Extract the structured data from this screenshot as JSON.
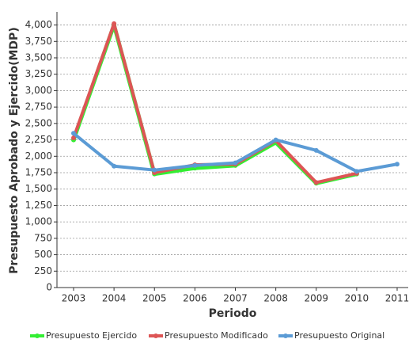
{
  "chart_data": {
    "type": "line",
    "x_label": "Periodo",
    "y_label": "Presupuesto Aprobado y Ejercido(MDP)",
    "categories": [
      "2003",
      "2004",
      "2005",
      "2006",
      "2007",
      "2008",
      "2009",
      "2010",
      "2011"
    ],
    "series": [
      {
        "name": "Presupuesto Ejercido",
        "color": "#33ee33",
        "values": [
          2250,
          4000,
          1730,
          1820,
          1860,
          2210,
          1590,
          1730,
          null
        ]
      },
      {
        "name": "Presupuesto Modificado",
        "color": "#dd5555",
        "values": [
          2280,
          4020,
          1750,
          1870,
          1880,
          2240,
          1600,
          1740,
          null
        ]
      },
      {
        "name": "Presupuesto Original",
        "color": "#5b9bd5",
        "values": [
          2350,
          1850,
          1790,
          1860,
          1900,
          2250,
          2090,
          1770,
          1880
        ]
      }
    ],
    "ylim": [
      0,
      4200
    ],
    "yticks": [
      0,
      250,
      500,
      750,
      {
        "value": 1000,
        "label": "1,000"
      },
      {
        "value": 1250,
        "label": "1,250"
      },
      {
        "value": 1500,
        "label": "1,500"
      },
      {
        "value": 1750,
        "label": "1,750"
      },
      {
        "value": 2000,
        "label": "2,000"
      },
      {
        "value": 2250,
        "label": "2,250"
      },
      {
        "value": 2500,
        "label": "2,500"
      },
      {
        "value": 2750,
        "label": "2,750"
      },
      {
        "value": 3000,
        "label": "3,000"
      },
      {
        "value": 3250,
        "label": "3,250"
      },
      {
        "value": 3500,
        "label": "3,500"
      },
      {
        "value": 3750,
        "label": "3,750"
      },
      {
        "value": 4000,
        "label": "4,000"
      }
    ],
    "grid": true
  }
}
